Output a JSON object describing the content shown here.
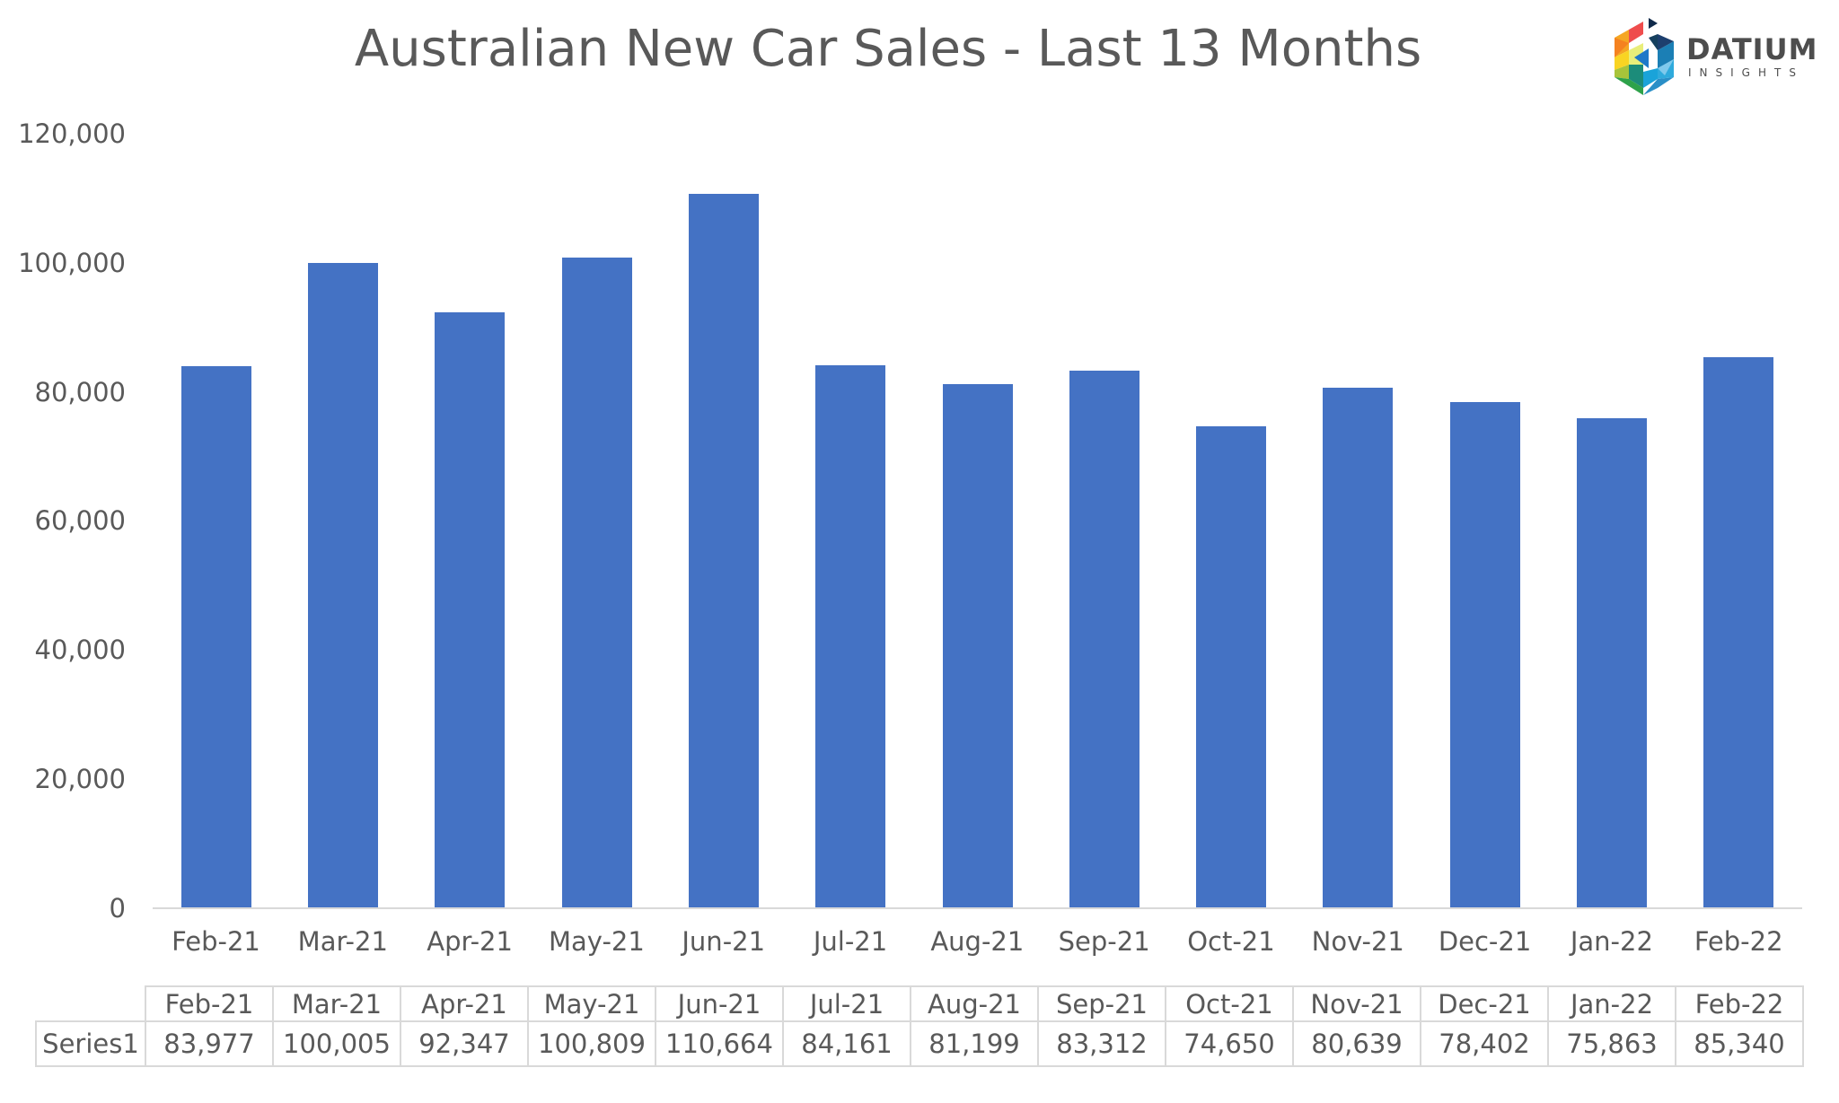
{
  "title": "Australian New Car Sales  - Last 13 Months",
  "logo": {
    "name": "DATIUM",
    "subtitle": "INSIGHTS",
    "icon": "datium-hexagon-logo-icon"
  },
  "colors": {
    "bar": "#4472C4",
    "text": "#595959",
    "grid_axis": "#D9D9D9"
  },
  "y_axis": {
    "ticks": [
      "120,000",
      "100,000",
      "80,000",
      "60,000",
      "40,000",
      "20,000",
      "0"
    ]
  },
  "data_table": {
    "series_label": "Series1",
    "headers": [
      "Feb-21",
      "Mar-21",
      "Apr-21",
      "May-21",
      "Jun-21",
      "Jul-21",
      "Aug-21",
      "Sep-21",
      "Oct-21",
      "Nov-21",
      "Dec-21",
      "Jan-22",
      "Feb-22"
    ],
    "values": [
      "83,977",
      "100,005",
      "92,347",
      "100,809",
      "110,664",
      "84,161",
      "81,199",
      "83,312",
      "74,650",
      "80,639",
      "78,402",
      "75,863",
      "85,340"
    ]
  },
  "chart_data": {
    "type": "bar",
    "title": "Australian New Car Sales  - Last 13 Months",
    "xlabel": "",
    "ylabel": "",
    "categories": [
      "Feb-21",
      "Mar-21",
      "Apr-21",
      "May-21",
      "Jun-21",
      "Jul-21",
      "Aug-21",
      "Sep-21",
      "Oct-21",
      "Nov-21",
      "Dec-21",
      "Jan-22",
      "Feb-22"
    ],
    "series": [
      {
        "name": "Series1",
        "values": [
          83977,
          100005,
          92347,
          100809,
          110664,
          84161,
          81199,
          83312,
          74650,
          80639,
          78402,
          75863,
          85340
        ]
      }
    ],
    "ylim": [
      0,
      120000
    ],
    "yticks": [
      0,
      20000,
      40000,
      60000,
      80000,
      100000,
      120000
    ],
    "grid": false,
    "legend": "none (data table shown below chart)"
  }
}
